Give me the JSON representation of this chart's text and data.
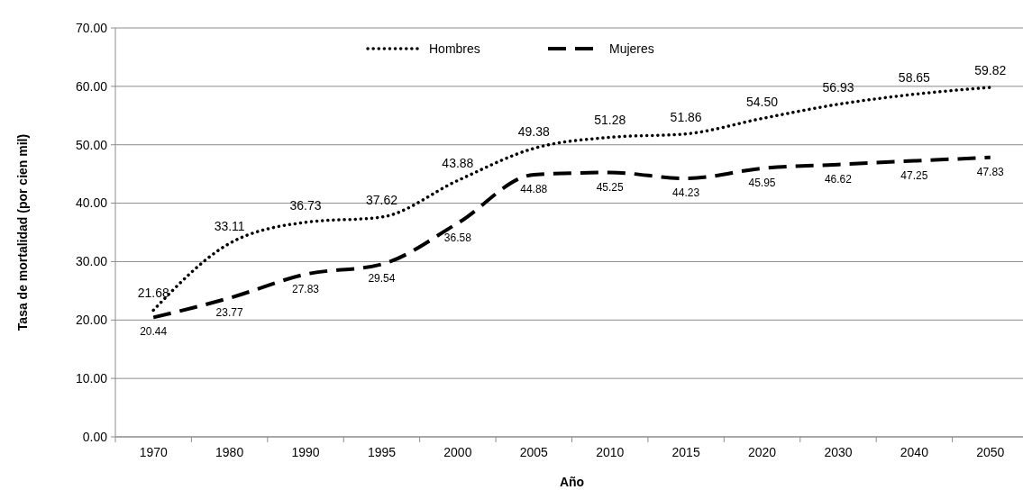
{
  "chart_data": {
    "type": "line",
    "xlabel": "Año",
    "ylabel": "Tasa de mortalidad (por cien mil)",
    "categories": [
      "1970",
      "1980",
      "1990",
      "1995",
      "2000",
      "2005",
      "2010",
      "2015",
      "2020",
      "2030",
      "2040",
      "2050"
    ],
    "ylim": [
      0,
      70
    ],
    "yticks": [
      {
        "value": 0,
        "label": "0.00"
      },
      {
        "value": 10,
        "label": "10.00"
      },
      {
        "value": 20,
        "label": "20.00"
      },
      {
        "value": 30,
        "label": "30.00"
      },
      {
        "value": 40,
        "label": "40.00"
      },
      {
        "value": 50,
        "label": "50.00"
      },
      {
        "value": 60,
        "label": "60.00"
      },
      {
        "value": 70,
        "label": "70.00"
      }
    ],
    "grid": "y",
    "legend": "top",
    "marker": "none",
    "series": [
      {
        "name": "Hombres",
        "color": "#000000",
        "line_style": "dotted",
        "values": [
          21.68,
          33.11,
          36.73,
          37.62,
          43.88,
          49.38,
          51.28,
          51.86,
          54.5,
          56.93,
          58.65,
          59.82
        ],
        "value_labels": [
          "21.68",
          "33.11",
          "36.73",
          "37.62",
          "43.88",
          "49.38",
          "51.28",
          "51.86",
          "54.50",
          "56.93",
          "58.65",
          "59.82"
        ]
      },
      {
        "name": "Mujeres",
        "color": "#000000",
        "line_style": "dashed",
        "values": [
          20.44,
          23.77,
          27.83,
          29.54,
          36.58,
          44.88,
          45.25,
          44.23,
          45.95,
          46.62,
          47.25,
          47.83
        ],
        "value_labels": [
          "20.44",
          "23.77",
          "27.83",
          "29.54",
          "36.58",
          "44.88",
          "45.25",
          "44.23",
          "45.95",
          "46.62",
          "47.25",
          "47.83"
        ]
      }
    ]
  }
}
